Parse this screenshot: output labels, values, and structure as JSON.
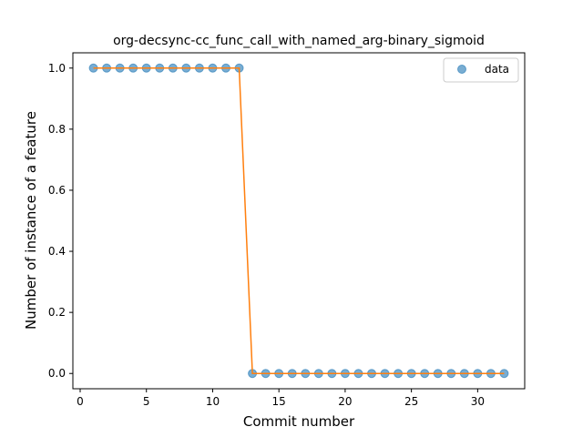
{
  "chart_data": {
    "type": "scatter",
    "title": "org-decsync-cc_func_call_with_named_arg-binary_sigmoid",
    "xlabel": "Commit number",
    "ylabel": "Number of instance of a feature",
    "xlim": [
      -0.55,
      33.55
    ],
    "ylim": [
      -0.05,
      1.05
    ],
    "x_ticks": [
      0,
      5,
      10,
      15,
      20,
      25,
      30
    ],
    "y_ticks": [
      0.0,
      0.2,
      0.4,
      0.6,
      0.8,
      1.0
    ],
    "x_tick_labels": [
      "0",
      "5",
      "10",
      "15",
      "20",
      "25",
      "30"
    ],
    "y_tick_labels": [
      "0.0",
      "0.2",
      "0.4",
      "0.6",
      "0.8",
      "1.0"
    ],
    "grid": false,
    "legend_position": "top-right",
    "series": [
      {
        "name": "data",
        "kind": "scatter",
        "color": "#1f77b4",
        "x": [
          1,
          2,
          3,
          4,
          5,
          6,
          7,
          8,
          9,
          10,
          11,
          12,
          13,
          14,
          15,
          16,
          17,
          18,
          19,
          20,
          21,
          22,
          23,
          24,
          25,
          26,
          27,
          28,
          29,
          30,
          31,
          32
        ],
        "y": [
          1,
          1,
          1,
          1,
          1,
          1,
          1,
          1,
          1,
          1,
          1,
          1,
          0,
          0,
          0,
          0,
          0,
          0,
          0,
          0,
          0,
          0,
          0,
          0,
          0,
          0,
          0,
          0,
          0,
          0,
          0,
          0
        ]
      },
      {
        "kind": "line",
        "color": "#ff7f0e",
        "x": [
          1,
          2,
          3,
          4,
          5,
          6,
          7,
          8,
          9,
          10,
          11,
          12,
          13,
          14,
          15,
          16,
          17,
          18,
          19,
          20,
          21,
          22,
          23,
          24,
          25,
          26,
          27,
          28,
          29,
          30,
          31,
          32
        ],
        "y": [
          1,
          1,
          1,
          1,
          1,
          1,
          1,
          1,
          1,
          1,
          1,
          1,
          0,
          0,
          0,
          0,
          0,
          0,
          0,
          0,
          0,
          0,
          0,
          0,
          0,
          0,
          0,
          0,
          0,
          0,
          0,
          0
        ]
      }
    ]
  }
}
